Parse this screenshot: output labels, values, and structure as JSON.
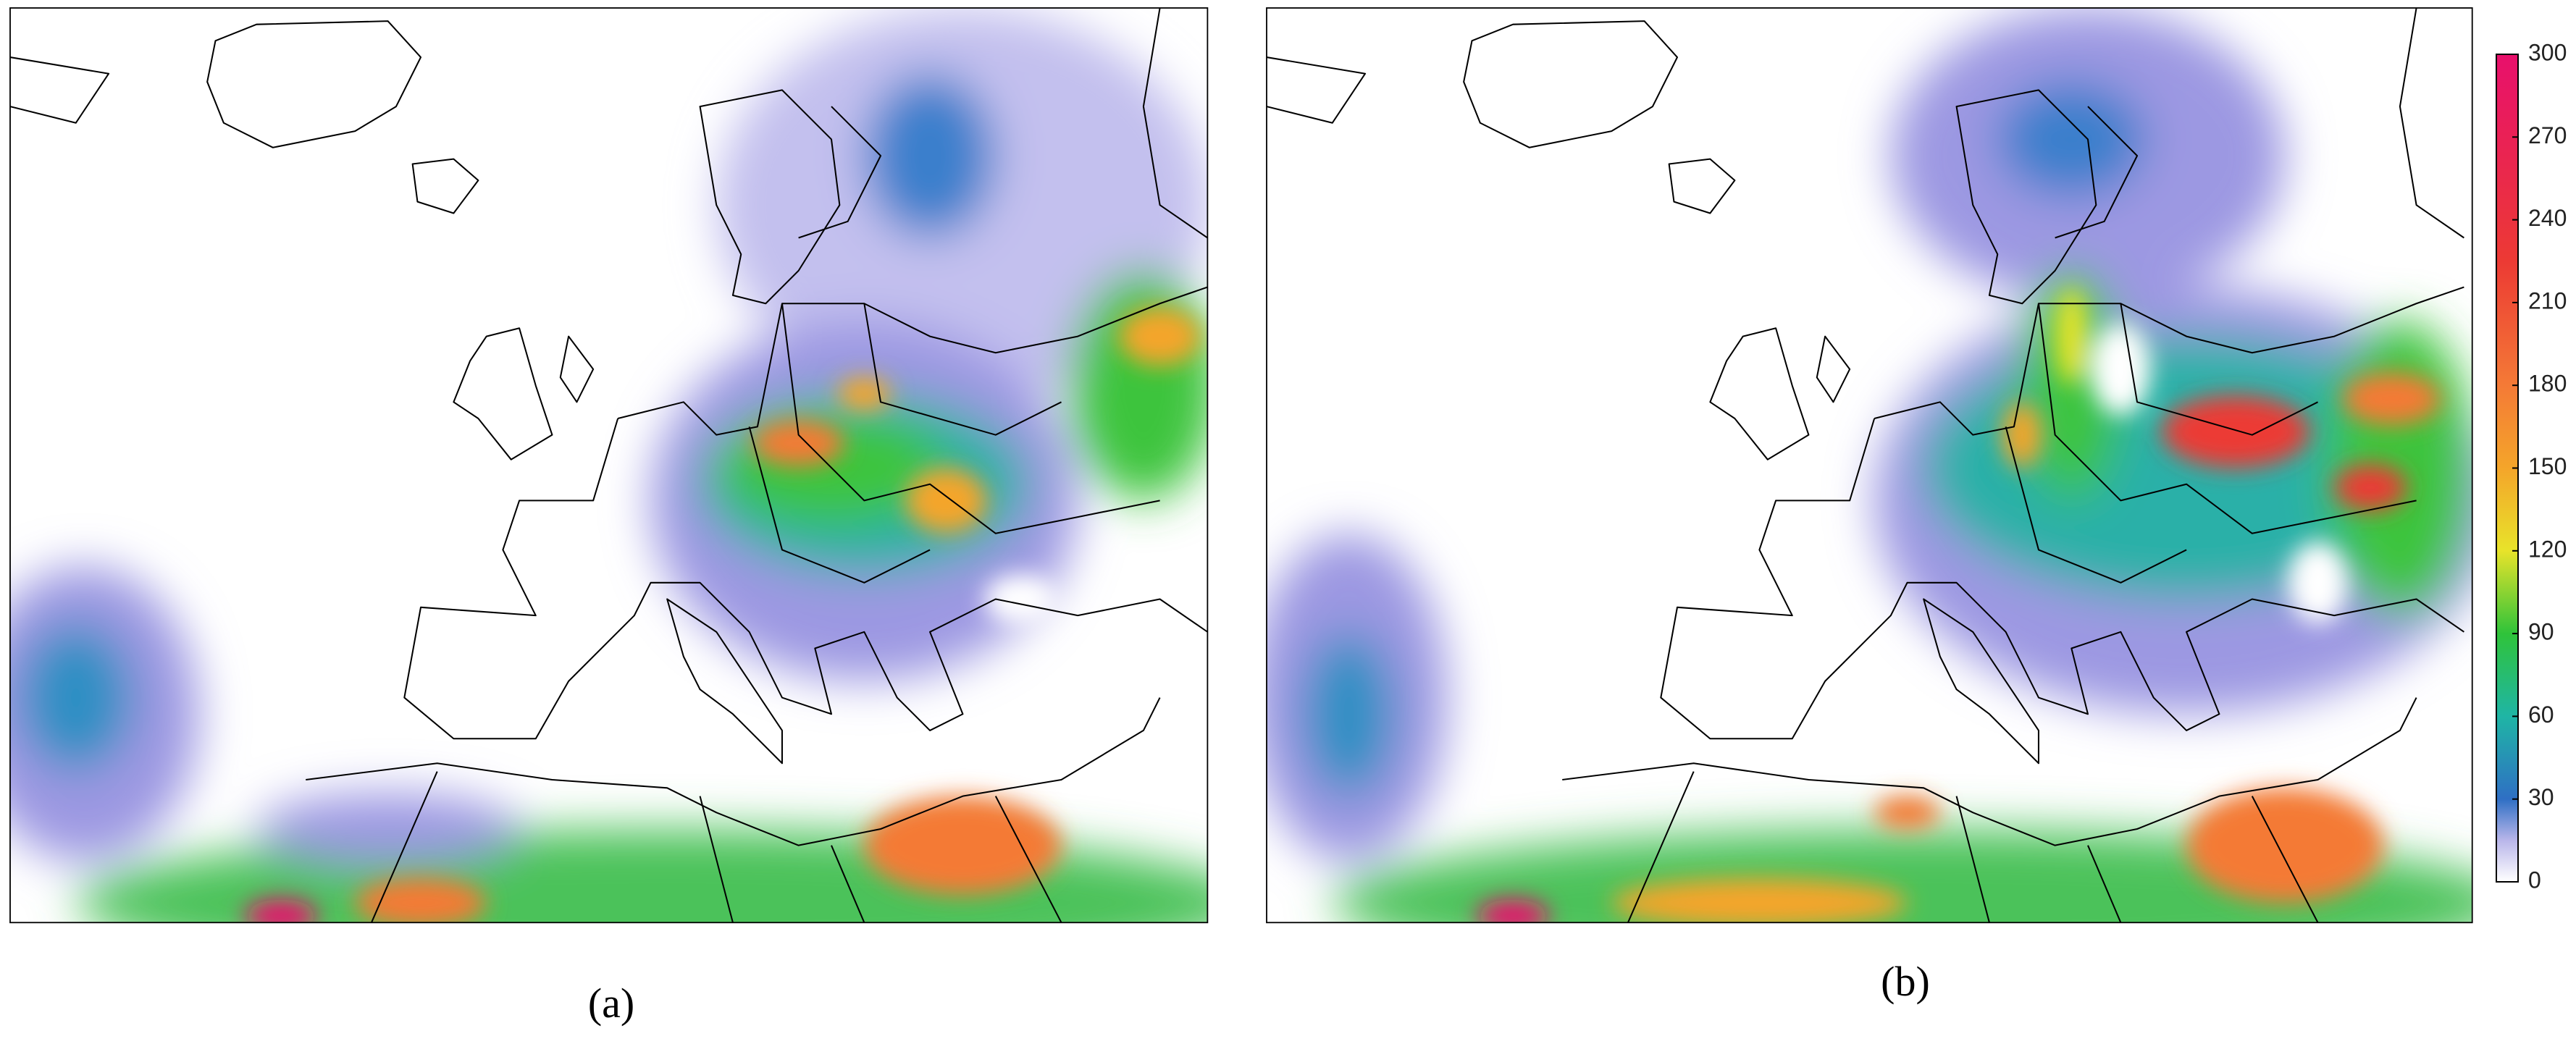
{
  "panels": [
    {
      "label": "(a)"
    },
    {
      "label": "(b)"
    }
  ],
  "colorbar": {
    "lim": [
      0,
      300
    ],
    "ticks": [
      0,
      30,
      60,
      90,
      120,
      150,
      180,
      210,
      240,
      270,
      300
    ]
  }
}
